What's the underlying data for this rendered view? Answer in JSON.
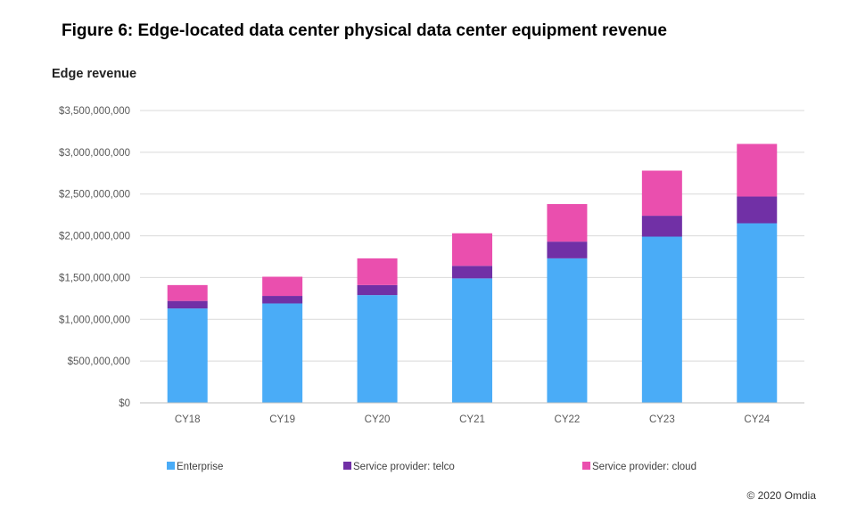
{
  "figure_title": "Figure 6: Edge-located data center physical data center equipment revenue",
  "copyright": "© 2020 Omdia",
  "chart_data": {
    "type": "bar",
    "stacked": true,
    "title": "Figure 6: Edge-located data center physical data center equipment revenue",
    "ylabel": "Edge revenue",
    "xlabel": "",
    "categories": [
      "CY18",
      "CY19",
      "CY20",
      "CY21",
      "CY22",
      "CY23",
      "CY24"
    ],
    "ylim": [
      0,
      3500000000
    ],
    "yticks": [
      0,
      500000000,
      1000000000,
      1500000000,
      2000000000,
      2500000000,
      3000000000,
      3500000000
    ],
    "ytick_labels": [
      "$0",
      "$500,000,000",
      "$1,000,000,000",
      "$1,500,000,000",
      "$2,000,000,000",
      "$2,500,000,000",
      "$3,000,000,000",
      "$3,500,000,000"
    ],
    "grid": true,
    "legend_position": "bottom",
    "series": [
      {
        "name": "Enterprise",
        "color": "#4aacf7",
        "values": [
          1130000000,
          1190000000,
          1290000000,
          1490000000,
          1730000000,
          1990000000,
          2150000000
        ]
      },
      {
        "name": "Service provider: telco",
        "color": "#7130a6",
        "values": [
          90000000,
          90000000,
          120000000,
          150000000,
          200000000,
          250000000,
          320000000
        ]
      },
      {
        "name": "Service provider: cloud",
        "color": "#ea4fae",
        "values": [
          190000000,
          230000000,
          320000000,
          390000000,
          450000000,
          540000000,
          630000000
        ]
      }
    ]
  }
}
